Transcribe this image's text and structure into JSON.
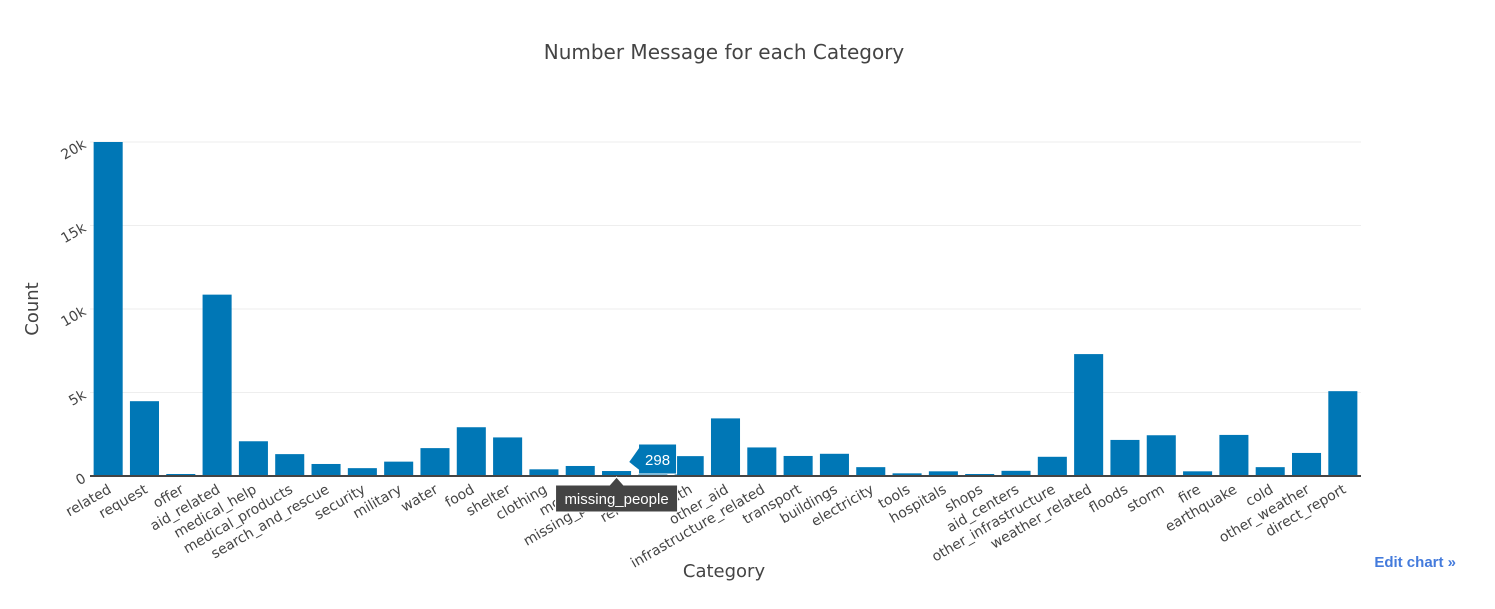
{
  "chart_data": {
    "type": "bar",
    "title": "Number Message for each Category",
    "xlabel": "Category",
    "ylabel": "Count",
    "ylim": [
      0,
      20000
    ],
    "y_ticks": [
      0,
      5000,
      10000,
      15000,
      20000
    ],
    "y_tick_labels": [
      "0",
      "5k",
      "10k",
      "15k",
      "20k"
    ],
    "grid": true,
    "color": "#0077b6",
    "categories": [
      "related",
      "request",
      "offer",
      "aid_related",
      "medical_help",
      "medical_products",
      "search_and_rescue",
      "security",
      "military",
      "water",
      "food",
      "shelter",
      "clothing",
      "money",
      "missing_people",
      "refugees",
      "death",
      "other_aid",
      "infrastructure_related",
      "transport",
      "buildings",
      "electricity",
      "tools",
      "hospitals",
      "shops",
      "aid_centers",
      "other_infrastructure",
      "weather_related",
      "floods",
      "storm",
      "fire",
      "earthquake",
      "cold",
      "other_weather",
      "direct_report"
    ],
    "values": [
      20000,
      4480,
      120,
      10860,
      2080,
      1310,
      720,
      470,
      860,
      1670,
      2920,
      2310,
      400,
      600,
      298,
      880,
      1190,
      3450,
      1710,
      1200,
      1330,
      530,
      160,
      280,
      120,
      310,
      1150,
      7300,
      2160,
      2440,
      280,
      2460,
      530,
      1380,
      5080
    ]
  },
  "hover": {
    "category": "missing_people",
    "value": "298"
  },
  "edit_link": "Edit chart »"
}
